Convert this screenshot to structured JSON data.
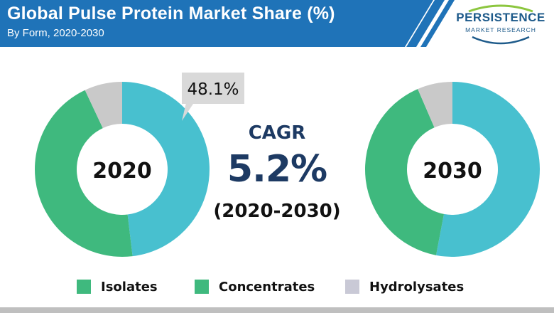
{
  "header": {
    "title": "Global Pulse Protein Market Share (%)",
    "subtitle": "By Form, 2020-2030"
  },
  "logo": {
    "name": "PERSISTENCE",
    "tagline": "MARKET RESEARCH"
  },
  "cagr": {
    "label": "CAGR",
    "value": "5.2%",
    "period": "(2020-2030)"
  },
  "colors": {
    "header_blue": "#1f73b8",
    "isolates": "#48c0cf",
    "concentrates": "#3fb97e",
    "hydrolysates": "#c9c9c9"
  },
  "chart_data": [
    {
      "type": "donut",
      "center_label": "2020",
      "callout": "48.1%",
      "slices": [
        {
          "category": "Isolates",
          "value": 48.1
        },
        {
          "category": "Concentrates",
          "value": 44.9
        },
        {
          "category": "Hydrolysates",
          "value": 7.0
        }
      ]
    },
    {
      "type": "donut",
      "center_label": "2030",
      "slices": [
        {
          "category": "Isolates",
          "value": 53.0
        },
        {
          "category": "Concentrates",
          "value": 40.5
        },
        {
          "category": "Hydrolysates",
          "value": 6.5
        }
      ]
    }
  ],
  "legend": [
    {
      "label": "Isolates",
      "color": "#3fb97e"
    },
    {
      "label": "Concentrates",
      "color": "#3fb97e"
    },
    {
      "label": "Hydrolysates",
      "color": "#c9c9d6"
    }
  ]
}
